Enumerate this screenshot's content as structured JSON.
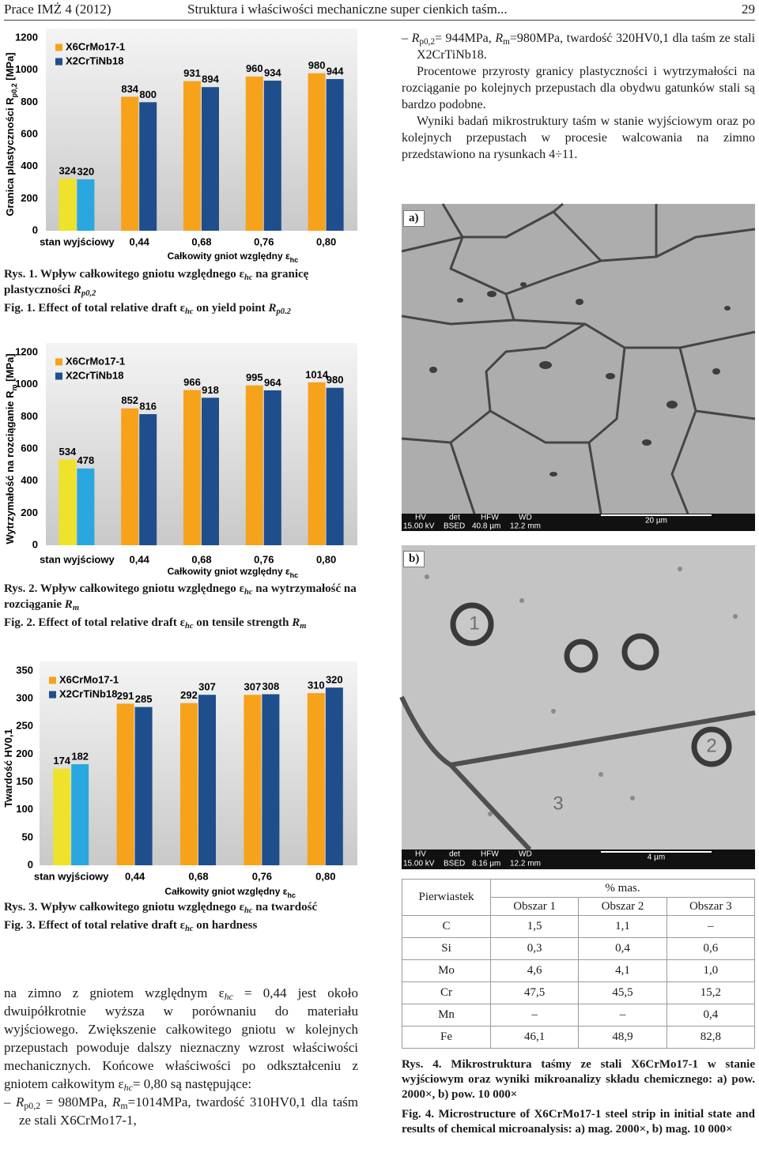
{
  "header": {
    "journal": "Prace IMŻ 4 (2012)",
    "title": "Struktura i właściwości mechaniczne super cienkich taśm...",
    "page": "29"
  },
  "chart_data": [
    {
      "type": "bar",
      "ylabel": [
        "Granica plastyczności R",
        "p0,2",
        " [MPa]"
      ],
      "xlabel": [
        "Całkowity gniot względny ",
        "ε",
        "hc"
      ],
      "categories": [
        "stan wyjściowy",
        "0,44",
        "0,68",
        "0,76",
        "0,80"
      ],
      "series": [
        {
          "name": "X6CrMo17-1",
          "color": "#f7a21b",
          "colors": [
            "#efe22c",
            "#f7a21b",
            "#f7a21b",
            "#f7a21b",
            "#f7a21b"
          ],
          "values": [
            324,
            834,
            931,
            960,
            980
          ]
        },
        {
          "name": "X2CrTiNb18",
          "color": "#1f4e8c",
          "colors": [
            "#2ba7df",
            "#1f4e8c",
            "#1f4e8c",
            "#1f4e8c",
            "#1f4e8c"
          ],
          "values": [
            320,
            800,
            894,
            934,
            944
          ]
        }
      ],
      "ylim": [
        0,
        1200
      ],
      "yticks": [
        0,
        200,
        400,
        600,
        800,
        1000,
        1200
      ],
      "grid": false,
      "legend": "upper left"
    },
    {
      "type": "bar",
      "ylabel": [
        "Wytrzymałość na rozciąganie R",
        "m",
        " [MPa]"
      ],
      "xlabel": [
        "Całkowity gniot względny ",
        "ε",
        "hc"
      ],
      "categories": [
        "stan wyjściowy",
        "0,44",
        "0,68",
        "0,76",
        "0,80"
      ],
      "series": [
        {
          "name": "X6CrMo17-1",
          "color": "#f7a21b",
          "colors": [
            "#efe22c",
            "#f7a21b",
            "#f7a21b",
            "#f7a21b",
            "#f7a21b"
          ],
          "values": [
            534,
            852,
            966,
            995,
            1014
          ]
        },
        {
          "name": "X2CrTiNb18",
          "color": "#1f4e8c",
          "colors": [
            "#2ba7df",
            "#1f4e8c",
            "#1f4e8c",
            "#1f4e8c",
            "#1f4e8c"
          ],
          "values": [
            478,
            816,
            918,
            964,
            980
          ]
        }
      ],
      "ylim": [
        0,
        1200
      ],
      "yticks": [
        0,
        200,
        400,
        600,
        800,
        1000,
        1200
      ],
      "grid": false,
      "legend": "upper left"
    },
    {
      "type": "bar",
      "ylabel": [
        "Twardość HV0,1"
      ],
      "xlabel": [
        "Całkowity gniot względny ",
        "ε",
        "hc"
      ],
      "categories": [
        "stan wyjściowy",
        "0,44",
        "0,68",
        "0,76",
        "0,80"
      ],
      "series": [
        {
          "name": "X6CrMo17-1",
          "color": "#f7a21b",
          "colors": [
            "#efe22c",
            "#f7a21b",
            "#f7a21b",
            "#f7a21b",
            "#f7a21b"
          ],
          "values": [
            174,
            291,
            292,
            307,
            310
          ]
        },
        {
          "name": "X2CrTiNb18",
          "color": "#1f4e8c",
          "colors": [
            "#2ba7df",
            "#1f4e8c",
            "#1f4e8c",
            "#1f4e8c",
            "#1f4e8c"
          ],
          "values": [
            182,
            285,
            307,
            308,
            320
          ]
        }
      ],
      "ylim": [
        0,
        350
      ],
      "yticks": [
        0,
        50,
        100,
        150,
        200,
        250,
        300,
        350
      ],
      "grid": false,
      "legend": "upper left"
    }
  ],
  "captions": [
    {
      "pl": [
        "Rys. 1.",
        " Wpływ całkowitego gniotu względnego ",
        "ε",
        "hc",
        " na granicę plastyczności ",
        "R",
        "p0,2"
      ],
      "en": [
        "Fig. 1.",
        " Effect of total relative draft ",
        "ε",
        "hc",
        " on yield point ",
        "R",
        "p0.2"
      ]
    },
    {
      "pl": [
        "Rys. 2.",
        " Wpływ całkowitego gniotu względnego ",
        "ε",
        "hc",
        " na wytrzymałość na rozciąganie ",
        "R",
        "m"
      ],
      "en": [
        "Fig. 2.",
        " Effect of total relative draft ",
        "ε",
        "hc",
        " on tensile strength ",
        "R",
        "m"
      ]
    },
    {
      "pl": [
        "Rys. 3.",
        " Wpływ całkowitego gniotu względnego ",
        "ε",
        "hc",
        " na twardość"
      ],
      "en": [
        "Fig. 3.",
        " Effect of total relative draft ",
        "ε",
        "hc",
        " on hardness"
      ]
    }
  ],
  "left_text": [
    [
      "na zimno z gniotem względnym ",
      "ε",
      "hc",
      " = 0,44 jest około dwuipółkrotnie wyższa w porównaniu do materiału wyjściowego. Zwiększenie całkowitego gniotu w kolejnych przepustach powoduje dalszy nieznaczny wzrost właściwości mechanicznych. Końcowe właściwości po odkształceniu z gniotem całkowitym ",
      "ε",
      "hc",
      "= 0,80 są następujące:"
    ],
    [
      "– ",
      "R",
      "p0,2",
      " = 980MPa, ",
      "R",
      "m",
      "=1014MPa, twardość 310HV0,1 dla taśm ze stali X6CrMo17-1,"
    ]
  ],
  "right_text": [
    [
      "– ",
      "R",
      "p0,2",
      "= 944MPa, ",
      "R",
      "m",
      "=980MPa, twardość 320HV0,1 dla taśm ze stali X2CrTiNb18."
    ],
    "Procentowe przyrosty granicy plastyczności i wytrzymałości na rozciąganie po kolejnych przepustach dla obydwu gatunków stali są bardzo podobne.",
    "Wyniki badań mikrostruktury taśm w stanie wyjściowym oraz po kolejnych przepustach w procesie walcowania na zimno przedstawiono na rysunkach 4÷11."
  ],
  "figure4": {
    "sem_labels": [
      "HV",
      "det",
      "HFW",
      "WD"
    ],
    "a": {
      "tag": "a)",
      "sem": [
        "15.00 kV",
        "BSED",
        "40.8 µm",
        "12.2 mm"
      ],
      "scale": "20 µm"
    },
    "b": {
      "tag": "b)",
      "sem": [
        "15.00 kV",
        "BSED",
        "8.16 µm",
        "12.2 mm"
      ],
      "scale": "4 µm",
      "particles": [
        "1",
        "2",
        "3"
      ]
    }
  },
  "table": {
    "row_header": "Pierwiastek",
    "unit": "% mas.",
    "columns": [
      "Obszar 1",
      "Obszar 2",
      "Obszar 3"
    ],
    "rows": [
      [
        "C",
        "1,5",
        "1,1",
        "–"
      ],
      [
        "Si",
        "0,3",
        "0,4",
        "0,6"
      ],
      [
        "Mo",
        "4,6",
        "4,1",
        "1,0"
      ],
      [
        "Cr",
        "47,5",
        "45,5",
        "15,2"
      ],
      [
        "Mn",
        "–",
        "–",
        "0,4"
      ],
      [
        "Fe",
        "46,1",
        "48,9",
        "82,8"
      ]
    ]
  },
  "caption4": {
    "pl": [
      "Rys. 4.",
      " Mikrostruktura taśmy ze stali X6CrMo17-1 w stanie wyjściowym oraz wyniki mikroanalizy składu chemicznego: a) pow. 2000×, b) pow. 10 000×"
    ],
    "en": [
      "Fig. 4.",
      " Microstructure of X6CrMo17-1 steel strip in initial state and results of chemical microanalysis: a) mag. 2000×, b) mag. 10 000×"
    ]
  }
}
